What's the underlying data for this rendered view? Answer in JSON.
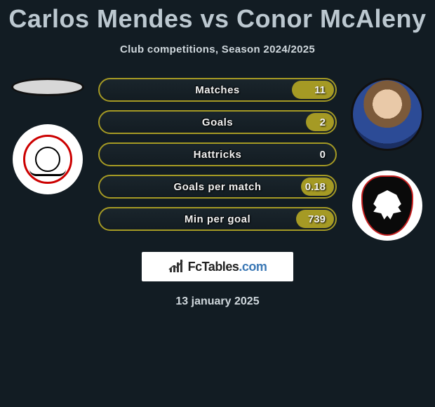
{
  "title": "Carlos Mendes vs Conor McAleny",
  "subtitle": "Club competitions, Season 2024/2025",
  "date": "13 january 2025",
  "brand": {
    "name": "FcTables",
    "domain": ".com"
  },
  "colors": {
    "background": "#121c23",
    "bar_border": "#a59a24",
    "bar_fill": "#a59a24",
    "title": "#bcc8d0",
    "text": "#cfd7dc"
  },
  "stats": {
    "type": "comparison-bars",
    "rows": [
      {
        "label": "Matches",
        "left": "",
        "right": "11",
        "fill_right_pct": 18
      },
      {
        "label": "Goals",
        "left": "",
        "right": "2",
        "fill_right_pct": 12
      },
      {
        "label": "Hattricks",
        "left": "",
        "right": "0",
        "fill_right_pct": 0
      },
      {
        "label": "Goals per match",
        "left": "",
        "right": "0.18",
        "fill_right_pct": 14
      },
      {
        "label": "Min per goal",
        "left": "",
        "right": "739",
        "fill_right_pct": 16
      }
    ]
  },
  "left_player": {
    "name": "Carlos Mendes",
    "has_photo": false
  },
  "right_player": {
    "name": "Conor McAleny",
    "has_photo": true
  }
}
